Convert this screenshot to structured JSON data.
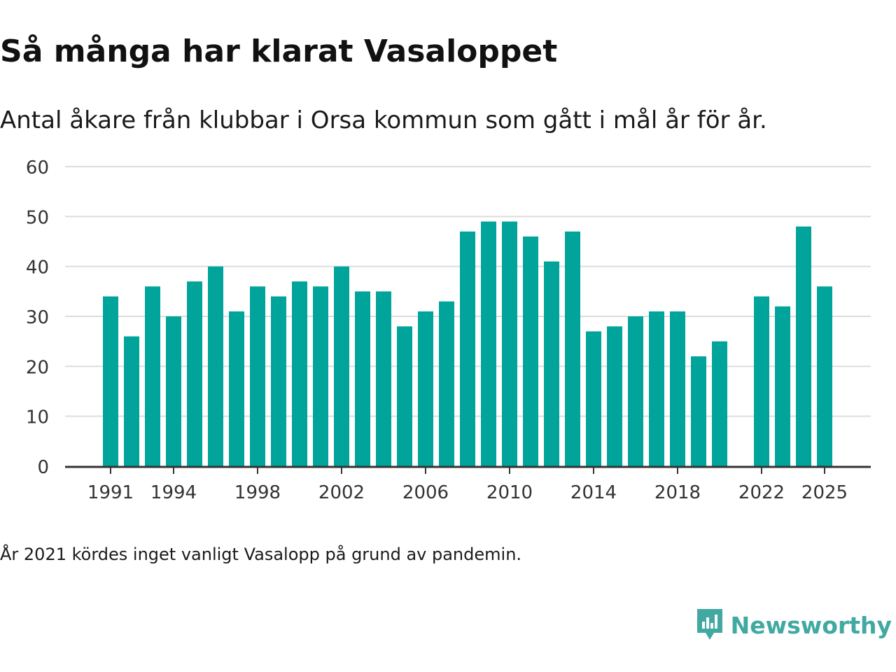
{
  "colors": {
    "bar": "#00a49a",
    "grid": "#dddddd",
    "axis": "#333333",
    "brand": "#41a9a1"
  },
  "title": "Så många har klarat Vasaloppet",
  "subtitle": "Antal åkare från klubbar i Orsa kommun som gått i mål år för år.",
  "footnote": "År 2021 kördes inget vanligt Vasalopp på grund av pandemin.",
  "brand": {
    "name": "Newsworthy",
    "icon": "newsworthy-logo-icon"
  },
  "chart_data": {
    "type": "bar",
    "title": "Så många har klarat Vasaloppet",
    "xlabel": "",
    "ylabel": "",
    "categories": [
      1991,
      1992,
      1993,
      1994,
      1995,
      1996,
      1997,
      1998,
      1999,
      2000,
      2001,
      2002,
      2003,
      2004,
      2005,
      2006,
      2007,
      2008,
      2009,
      2010,
      2011,
      2012,
      2013,
      2014,
      2015,
      2016,
      2017,
      2018,
      2019,
      2020,
      2021,
      2022,
      2023,
      2024,
      2025
    ],
    "values": [
      34,
      26,
      36,
      30,
      37,
      40,
      31,
      36,
      34,
      37,
      36,
      40,
      35,
      35,
      28,
      31,
      33,
      47,
      49,
      49,
      46,
      41,
      47,
      27,
      28,
      30,
      31,
      31,
      22,
      25,
      null,
      34,
      32,
      48,
      36
    ],
    "ylim": [
      0,
      60
    ],
    "yticks": [
      0,
      10,
      20,
      30,
      40,
      50,
      60
    ],
    "xticks": [
      1991,
      1994,
      1998,
      2002,
      2006,
      2010,
      2014,
      2018,
      2022,
      2025
    ],
    "grid": true
  }
}
